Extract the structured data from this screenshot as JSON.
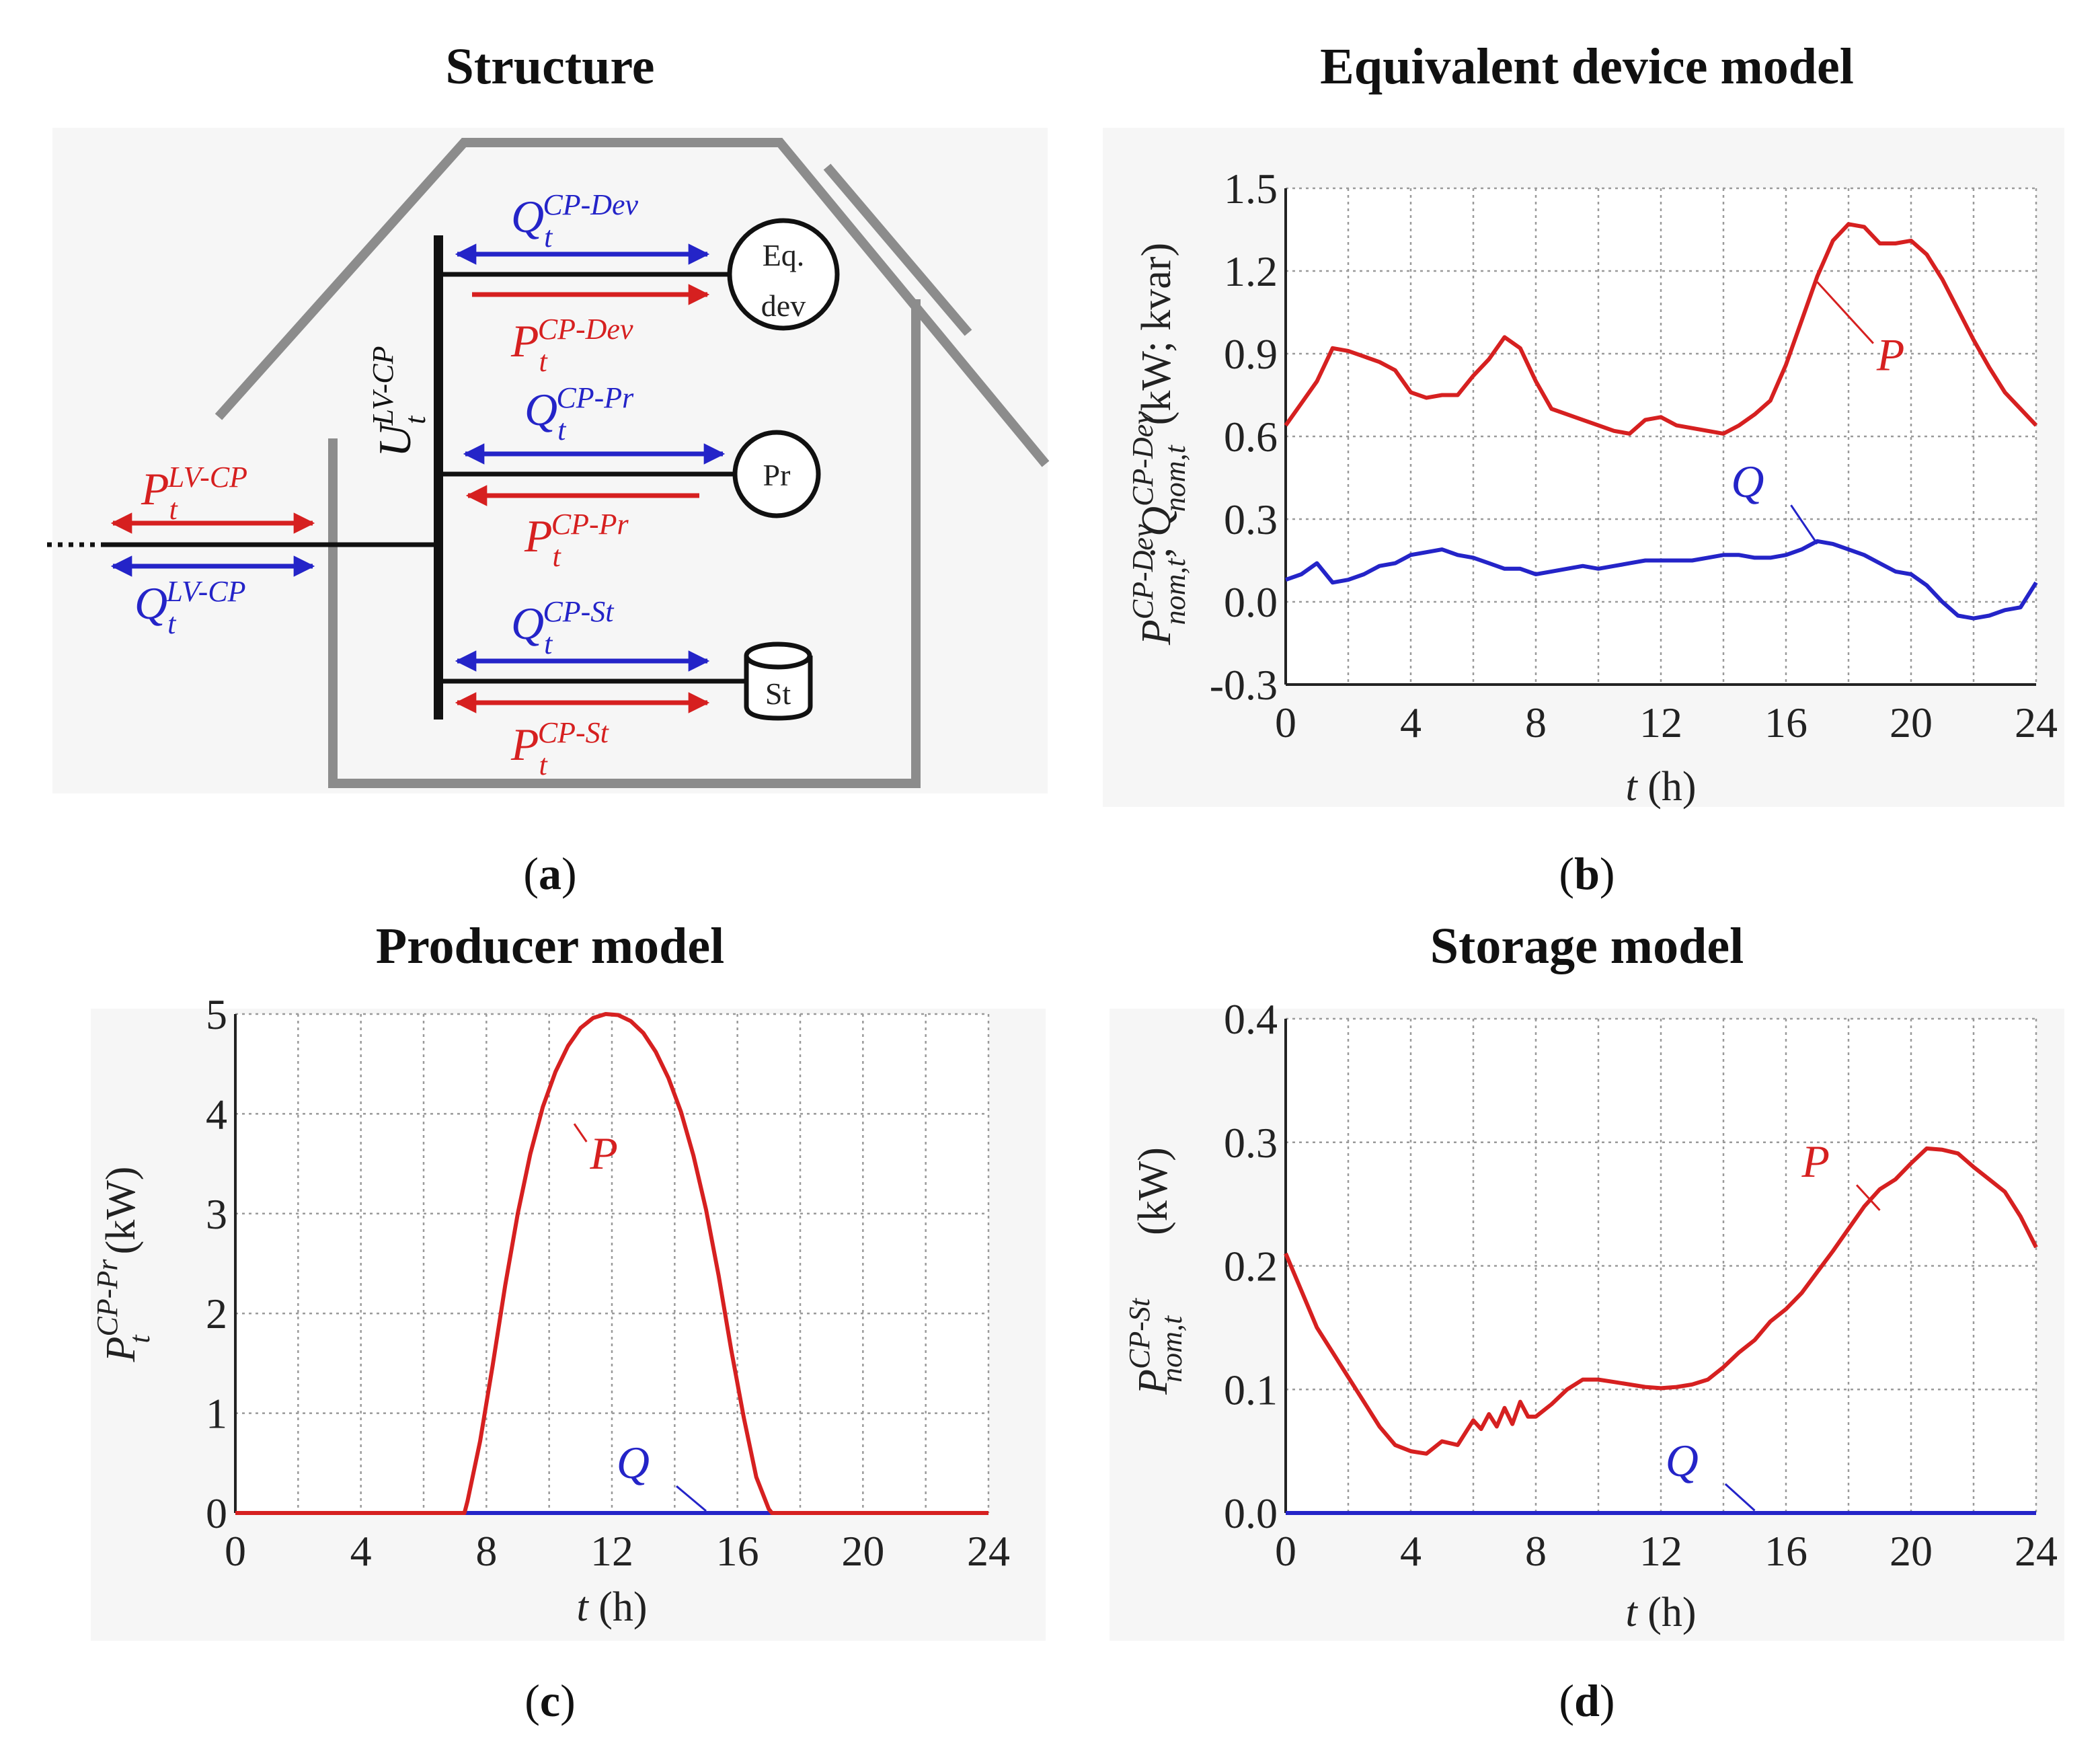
{
  "captions": {
    "a": "a",
    "b": "b",
    "c": "c",
    "d": "d"
  },
  "diagram": {
    "title": "Structure",
    "device_labels": {
      "eq_line1": "Eq.",
      "eq_line2": "dev",
      "pr": "Pr",
      "st": "St"
    },
    "flows": {
      "p_lv": {
        "base": "P",
        "sub": "t",
        "sup": "LV-CP"
      },
      "q_lv": {
        "base": "Q",
        "sub": "t",
        "sup": "LV-CP"
      },
      "u_lv": {
        "base": "U",
        "sub": "t",
        "sup": "LV-CP"
      },
      "q_dev": {
        "base": "Q",
        "sub": "t",
        "sup": "CP-Dev"
      },
      "p_dev": {
        "base": "P",
        "sub": "t",
        "sup": "CP-Dev"
      },
      "q_pr": {
        "base": "Q",
        "sub": "t",
        "sup": "CP-Pr"
      },
      "p_pr": {
        "base": "P",
        "sub": "t",
        "sup": "CP-Pr"
      },
      "q_st": {
        "base": "Q",
        "sub": "t",
        "sup": "CP-St"
      },
      "p_st": {
        "base": "P",
        "sub": "t",
        "sup": "CP-St"
      }
    },
    "colors": {
      "active": "#d62020",
      "reactive": "#2424c8",
      "house": "#8c8c8c",
      "bus": "#111111"
    }
  },
  "chart_data": [
    {
      "id": "b",
      "type": "line",
      "title": "Equivalent device model",
      "xlabel": {
        "var": "t",
        "unit": "(h)"
      },
      "ylabel": {
        "p": {
          "base": "P",
          "sup": "CP-Dev",
          "sub": "nom,t"
        },
        "q": {
          "base": "Q",
          "sup": "CP-Dev",
          "sub": "nom,t"
        },
        "unit": "(kW; kvar)"
      },
      "xlim": [
        0,
        24
      ],
      "ylim": [
        -0.3,
        1.5
      ],
      "xticks": [
        0,
        4,
        8,
        12,
        16,
        20,
        24
      ],
      "xtick_labels": [
        "0",
        "4",
        "8",
        "12",
        "16",
        "20",
        "24"
      ],
      "yticks": [
        -0.3,
        0,
        0.3,
        0.6,
        0.9,
        1.2,
        1.5
      ],
      "ytick_labels": [
        "-0.3",
        "0.0",
        "0.3",
        "0.6",
        "0.9",
        "1.2",
        "1.5"
      ],
      "xgrid": [
        0,
        2,
        4,
        6,
        8,
        10,
        12,
        14,
        16,
        18,
        20,
        22,
        24
      ],
      "series": [
        {
          "name": "P",
          "label": "P",
          "color": "#d62020",
          "x": [
            0,
            0.5,
            1,
            1.5,
            2,
            2.5,
            3,
            3.5,
            4,
            4.5,
            5,
            5.5,
            6,
            6.5,
            7,
            7.5,
            8,
            8.5,
            9,
            9.5,
            10,
            10.5,
            11,
            11.5,
            12,
            12.5,
            13,
            13.5,
            14,
            14.5,
            15,
            15.5,
            16,
            16.5,
            17,
            17.5,
            18,
            18.5,
            19,
            19.5,
            20,
            20.5,
            21,
            21.5,
            22,
            22.5,
            23,
            23.5,
            24
          ],
          "y": [
            0.64,
            0.72,
            0.8,
            0.92,
            0.91,
            0.89,
            0.87,
            0.84,
            0.76,
            0.74,
            0.75,
            0.75,
            0.82,
            0.88,
            0.96,
            0.92,
            0.8,
            0.7,
            0.68,
            0.66,
            0.64,
            0.62,
            0.61,
            0.66,
            0.67,
            0.64,
            0.63,
            0.62,
            0.61,
            0.64,
            0.68,
            0.73,
            0.86,
            1.02,
            1.18,
            1.31,
            1.37,
            1.36,
            1.3,
            1.3,
            1.31,
            1.26,
            1.17,
            1.06,
            0.95,
            0.85,
            0.76,
            0.7,
            0.64
          ]
        },
        {
          "name": "Q",
          "label": "Q",
          "color": "#2424c8",
          "x": [
            0,
            0.5,
            1,
            1.5,
            2,
            2.5,
            3,
            3.5,
            4,
            4.5,
            5,
            5.5,
            6,
            6.5,
            7,
            7.5,
            8,
            8.5,
            9,
            9.5,
            10,
            10.5,
            11,
            11.5,
            12,
            12.5,
            13,
            13.5,
            14,
            14.5,
            15,
            15.5,
            16,
            16.5,
            17,
            17.5,
            18,
            18.5,
            19,
            19.5,
            20,
            20.5,
            21,
            21.5,
            22,
            22.5,
            23,
            23.5,
            24
          ],
          "y": [
            0.08,
            0.1,
            0.14,
            0.07,
            0.08,
            0.1,
            0.13,
            0.14,
            0.17,
            0.18,
            0.19,
            0.17,
            0.16,
            0.14,
            0.12,
            0.12,
            0.1,
            0.11,
            0.12,
            0.13,
            0.12,
            0.13,
            0.14,
            0.15,
            0.15,
            0.15,
            0.15,
            0.16,
            0.17,
            0.17,
            0.16,
            0.16,
            0.17,
            0.19,
            0.22,
            0.21,
            0.19,
            0.17,
            0.14,
            0.11,
            0.1,
            0.06,
            0.0,
            -0.05,
            -0.06,
            -0.05,
            -0.03,
            -0.02,
            0.07
          ]
        }
      ],
      "annotations": [
        {
          "text": "P",
          "series": "P",
          "at_x": 17,
          "at_y": 1.16,
          "text_x": 18.9,
          "text_y": 0.84
        },
        {
          "text": "Q",
          "series": "Q",
          "at_x": 17,
          "at_y": 0.21,
          "text_x": 15.3,
          "text_y": 0.38
        }
      ]
    },
    {
      "id": "c",
      "type": "line",
      "title": "Producer model",
      "xlabel": {
        "var": "t",
        "unit": "(h)"
      },
      "ylabel": {
        "p": {
          "base": "P",
          "sup": "CP-Pr",
          "sub": "t"
        },
        "unit": "(kW)"
      },
      "xlim": [
        0,
        24
      ],
      "ylim": [
        0,
        5
      ],
      "xticks": [
        0,
        4,
        8,
        12,
        16,
        20,
        24
      ],
      "xtick_labels": [
        "0",
        "4",
        "8",
        "12",
        "16",
        "20",
        "24"
      ],
      "yticks": [
        0,
        1,
        2,
        3,
        4,
        5
      ],
      "ytick_labels": [
        "0",
        "1",
        "2",
        "3",
        "4",
        "5"
      ],
      "xgrid": [
        0,
        2,
        4,
        6,
        8,
        10,
        12,
        14,
        16,
        18,
        20,
        22,
        24
      ],
      "series": [
        {
          "name": "P",
          "label": "P",
          "color": "#d62020",
          "x": [
            0,
            7.3,
            7.4,
            7.8,
            8.2,
            8.6,
            9.0,
            9.4,
            9.8,
            10.2,
            10.6,
            11.0,
            11.4,
            11.8,
            12.2,
            12.6,
            13.0,
            13.4,
            13.8,
            14.2,
            14.6,
            15.0,
            15.4,
            15.8,
            16.2,
            16.6,
            17.0,
            17.1,
            24
          ],
          "y": [
            0,
            0,
            0.12,
            0.72,
            1.48,
            2.28,
            3.0,
            3.6,
            4.07,
            4.42,
            4.68,
            4.86,
            4.96,
            5.0,
            4.99,
            4.93,
            4.81,
            4.62,
            4.36,
            4.02,
            3.58,
            3.04,
            2.38,
            1.64,
            0.96,
            0.36,
            0.04,
            0,
            0
          ]
        },
        {
          "name": "Q",
          "label": "Q",
          "color": "#2424c8",
          "x": [
            0,
            24
          ],
          "y": [
            0,
            0
          ]
        }
      ],
      "annotations": [
        {
          "text": "P",
          "series": "P",
          "at_x": 10.8,
          "at_y": 3.9,
          "text_x": 11.3,
          "text_y": 3.45
        },
        {
          "text": "Q",
          "series": "Q",
          "at_x": 15,
          "at_y": 0.02,
          "text_x": 13.2,
          "text_y": 0.35
        }
      ]
    },
    {
      "id": "d",
      "type": "line",
      "title": "Storage model",
      "xlabel": {
        "var": "t",
        "unit": "(h)"
      },
      "ylabel": {
        "p": {
          "base": "P",
          "sup": "CP-St",
          "sub": "nom,t"
        },
        "unit": "(kW)"
      },
      "xlim": [
        0,
        24
      ],
      "ylim": [
        0,
        0.4
      ],
      "xticks": [
        0,
        4,
        8,
        12,
        16,
        20,
        24
      ],
      "xtick_labels": [
        "0",
        "4",
        "8",
        "12",
        "16",
        "20",
        "24"
      ],
      "yticks": [
        0,
        0.1,
        0.2,
        0.3,
        0.4
      ],
      "ytick_labels": [
        "0.0",
        "0.1",
        "0.2",
        "0.3",
        "0.4"
      ],
      "xgrid": [
        0,
        2,
        4,
        6,
        8,
        10,
        12,
        14,
        16,
        18,
        20,
        22,
        24
      ],
      "series": [
        {
          "name": "P",
          "label": "P",
          "color": "#d62020",
          "x": [
            0,
            0.5,
            1,
            1.5,
            2,
            2.5,
            3,
            3.5,
            4,
            4.5,
            5,
            5.5,
            6,
            6.25,
            6.5,
            6.75,
            7,
            7.25,
            7.5,
            7.75,
            8,
            8.5,
            9,
            9.5,
            10,
            10.5,
            11,
            11.5,
            12,
            12.5,
            13,
            13.5,
            14,
            14.5,
            15,
            15.5,
            16,
            16.5,
            17,
            17.5,
            18,
            18.5,
            19,
            19.5,
            20,
            20.5,
            21,
            21.5,
            22,
            22.5,
            23,
            23.5,
            24
          ],
          "y": [
            0.21,
            0.18,
            0.15,
            0.13,
            0.11,
            0.09,
            0.07,
            0.055,
            0.05,
            0.048,
            0.058,
            0.055,
            0.075,
            0.068,
            0.08,
            0.07,
            0.085,
            0.072,
            0.09,
            0.078,
            0.078,
            0.088,
            0.1,
            0.108,
            0.108,
            0.106,
            0.104,
            0.102,
            0.101,
            0.102,
            0.104,
            0.108,
            0.118,
            0.13,
            0.14,
            0.155,
            0.165,
            0.178,
            0.195,
            0.212,
            0.23,
            0.248,
            0.262,
            0.27,
            0.283,
            0.295,
            0.294,
            0.291,
            0.28,
            0.27,
            0.26,
            0.24,
            0.215
          ]
        },
        {
          "name": "Q",
          "label": "Q",
          "color": "#2424c8",
          "x": [
            0,
            24
          ],
          "y": [
            0,
            0
          ]
        }
      ],
      "annotations": [
        {
          "text": "P",
          "series": "P",
          "at_x": 19,
          "at_y": 0.245,
          "text_x": 17.4,
          "text_y": 0.272
        },
        {
          "text": "Q",
          "series": "Q",
          "at_x": 15,
          "at_y": 0.002,
          "text_x": 13.2,
          "text_y": 0.03
        }
      ]
    }
  ]
}
